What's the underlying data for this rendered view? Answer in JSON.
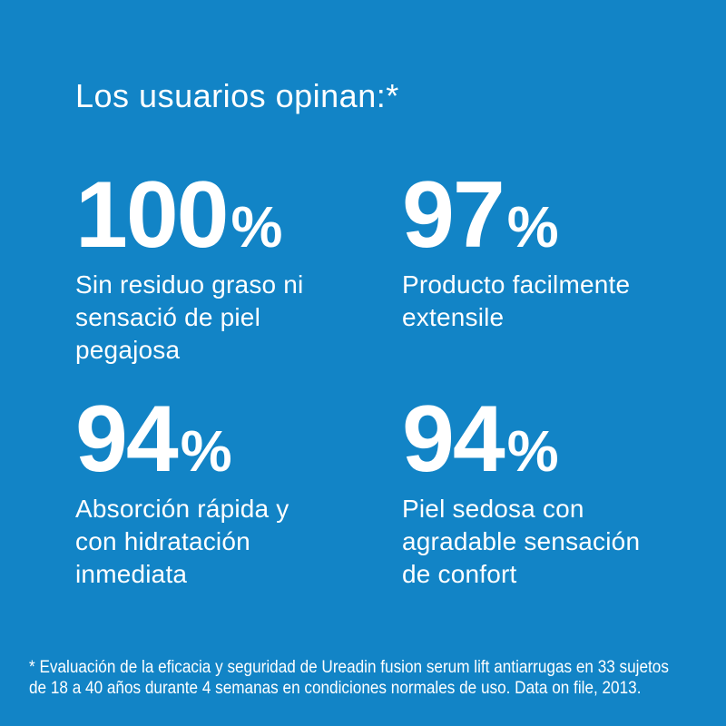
{
  "colors": {
    "background": "#1284c6",
    "text": "#ffffff"
  },
  "title": "Los usuarios opinan:*",
  "stats": [
    {
      "value": "100",
      "unit": "%",
      "lines": [
        "Sin residuo graso ni",
        "sensació de piel",
        "pegajosa"
      ]
    },
    {
      "value": "97",
      "unit": "%",
      "lines": [
        "Producto facilmente",
        "extensile"
      ]
    },
    {
      "value": "94",
      "unit": "%",
      "lines": [
        "Absorción rápida y",
        "con hidratación",
        "inmediata"
      ]
    },
    {
      "value": "94",
      "unit": "%",
      "lines": [
        "Piel sedosa con",
        "agradable sensación",
        "de confort"
      ]
    }
  ],
  "footnote_lines": [
    "* Evaluación de la eficacia y seguridad de Ureadin fusion serum lift antiarrugas en 33 sujetos",
    "de 18 a 40 años durante 4 semanas en condiciones normales de uso. Data on file, 2013."
  ]
}
